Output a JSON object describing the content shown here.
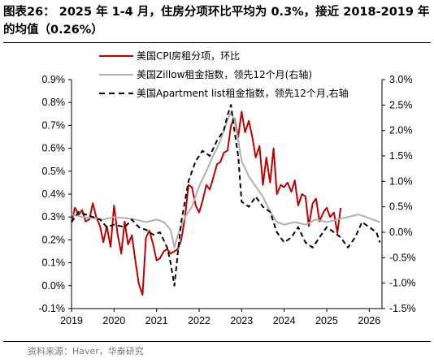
{
  "figure": {
    "title": "图表26： 2025 年 1-4 月，住房分项环比平均为 0.3%，接近 2018-2019 年的均值（0.26%）",
    "source": "资料来源：Haver，华泰研究"
  },
  "chart_data": {
    "type": "line",
    "title": "图表26： 2025 年 1-4 月，住房分项环比平均为 0.3%，接近 2018-2019 年的均值（0.26%）",
    "xlabel": "",
    "ylabel": "",
    "x_ticks": [
      "2019",
      "2020",
      "2021",
      "2022",
      "2023",
      "2024",
      "2025",
      "2026"
    ],
    "x_range": [
      2019.0,
      2026.3
    ],
    "y_left": {
      "range": [
        -0.1,
        0.9
      ],
      "ticks": [
        "-0.1%",
        "0.0%",
        "0.1%",
        "0.2%",
        "0.3%",
        "0.4%",
        "0.5%",
        "0.6%",
        "0.7%",
        "0.8%",
        "0.9%"
      ]
    },
    "y_right": {
      "range": [
        -1.5,
        3.0
      ],
      "ticks": [
        "-1.5%",
        "-1.0%",
        "-0.5%",
        "0.0%",
        "0.5%",
        "1.0%",
        "1.5%",
        "2.0%",
        "2.5%",
        "3.0%"
      ]
    },
    "grid": false,
    "legend_position": "top-center",
    "series": [
      {
        "name": "美国CPI房租分项，环比",
        "axis": "left",
        "color": "#c00000",
        "style": "solid",
        "points": [
          [
            2019.0,
            0.28
          ],
          [
            2019.08,
            0.34
          ],
          [
            2019.17,
            0.31
          ],
          [
            2019.25,
            0.33
          ],
          [
            2019.33,
            0.28
          ],
          [
            2019.42,
            0.29
          ],
          [
            2019.5,
            0.36
          ],
          [
            2019.58,
            0.3
          ],
          [
            2019.67,
            0.26
          ],
          [
            2019.75,
            0.19
          ],
          [
            2019.83,
            0.26
          ],
          [
            2019.92,
            0.17
          ],
          [
            2020.0,
            0.35
          ],
          [
            2020.08,
            0.23
          ],
          [
            2020.17,
            0.14
          ],
          [
            2020.25,
            0.28
          ],
          [
            2020.33,
            0.18
          ],
          [
            2020.42,
            0.22
          ],
          [
            2020.5,
            0.11
          ],
          [
            2020.58,
            0.01
          ],
          [
            2020.67,
            -0.04
          ],
          [
            2020.75,
            0.21
          ],
          [
            2020.83,
            0.24
          ],
          [
            2020.92,
            0.18
          ],
          [
            2021.0,
            0.11
          ],
          [
            2021.08,
            0.12
          ],
          [
            2021.17,
            0.15
          ],
          [
            2021.25,
            0.16
          ],
          [
            2021.33,
            0.14
          ],
          [
            2021.42,
            0.15
          ],
          [
            2021.5,
            0.16
          ],
          [
            2021.58,
            0.2
          ],
          [
            2021.67,
            0.3
          ],
          [
            2021.75,
            0.44
          ],
          [
            2021.83,
            0.43
          ],
          [
            2021.92,
            0.35
          ],
          [
            2022.0,
            0.32
          ],
          [
            2022.08,
            0.37
          ],
          [
            2022.17,
            0.44
          ],
          [
            2022.25,
            0.42
          ],
          [
            2022.33,
            0.47
          ],
          [
            2022.42,
            0.53
          ],
          [
            2022.5,
            0.54
          ],
          [
            2022.58,
            0.58
          ],
          [
            2022.67,
            0.59
          ],
          [
            2022.75,
            0.7
          ],
          [
            2022.83,
            0.73
          ],
          [
            2022.92,
            0.65
          ],
          [
            2023.0,
            0.76
          ],
          [
            2023.08,
            0.67
          ],
          [
            2023.17,
            0.72
          ],
          [
            2023.25,
            0.65
          ],
          [
            2023.33,
            0.56
          ],
          [
            2023.42,
            0.61
          ],
          [
            2023.5,
            0.44
          ],
          [
            2023.58,
            0.56
          ],
          [
            2023.67,
            0.45
          ],
          [
            2023.75,
            0.6
          ],
          [
            2023.83,
            0.4
          ],
          [
            2023.92,
            0.44
          ],
          [
            2024.0,
            0.43
          ],
          [
            2024.08,
            0.45
          ],
          [
            2024.17,
            0.41
          ],
          [
            2024.25,
            0.46
          ],
          [
            2024.33,
            0.35
          ],
          [
            2024.42,
            0.4
          ],
          [
            2024.5,
            0.39
          ],
          [
            2024.58,
            0.26
          ],
          [
            2024.67,
            0.36
          ],
          [
            2024.75,
            0.38
          ],
          [
            2024.83,
            0.28
          ],
          [
            2024.92,
            0.32
          ],
          [
            2025.0,
            0.34
          ],
          [
            2025.08,
            0.3
          ],
          [
            2025.17,
            0.32
          ],
          [
            2025.25,
            0.23
          ],
          [
            2025.33,
            0.34
          ]
        ]
      },
      {
        "name": "美国Zillow租金指数，领先12个月(右轴)",
        "axis": "right",
        "color": "#b0b0b0",
        "style": "solid",
        "points": [
          [
            2019.0,
            0.35
          ],
          [
            2019.25,
            0.3
          ],
          [
            2019.5,
            0.28
          ],
          [
            2019.75,
            0.25
          ],
          [
            2020.0,
            0.3
          ],
          [
            2020.25,
            0.28
          ],
          [
            2020.5,
            0.25
          ],
          [
            2020.75,
            0.2
          ],
          [
            2021.0,
            0.25
          ],
          [
            2021.17,
            0.2
          ],
          [
            2021.33,
            0.05
          ],
          [
            2021.42,
            -0.3
          ],
          [
            2021.5,
            -0.05
          ],
          [
            2021.67,
            0.3
          ],
          [
            2021.83,
            0.5
          ],
          [
            2022.0,
            0.9
          ],
          [
            2022.17,
            1.2
          ],
          [
            2022.33,
            1.5
          ],
          [
            2022.5,
            1.8
          ],
          [
            2022.67,
            2.2
          ],
          [
            2022.75,
            2.35
          ],
          [
            2022.83,
            2.2
          ],
          [
            2022.92,
            1.8
          ],
          [
            2023.0,
            1.4
          ],
          [
            2023.17,
            1.1
          ],
          [
            2023.33,
            0.9
          ],
          [
            2023.5,
            0.7
          ],
          [
            2023.67,
            0.4
          ],
          [
            2023.83,
            0.2
          ],
          [
            2024.0,
            0.15
          ],
          [
            2024.25,
            0.2
          ],
          [
            2024.5,
            0.15
          ],
          [
            2024.75,
            0.25
          ],
          [
            2025.0,
            0.2
          ],
          [
            2025.25,
            0.25
          ],
          [
            2025.5,
            0.3
          ],
          [
            2025.75,
            0.35
          ],
          [
            2025.92,
            0.3
          ],
          [
            2026.08,
            0.25
          ],
          [
            2026.25,
            0.2
          ]
        ]
      },
      {
        "name": "美国Apartment list租金指数，领先12个月,右轴",
        "axis": "right",
        "color": "#000000",
        "style": "dashed",
        "points": [
          [
            2019.0,
            0.2
          ],
          [
            2019.17,
            0.4
          ],
          [
            2019.33,
            0.35
          ],
          [
            2019.5,
            0.3
          ],
          [
            2019.67,
            0.25
          ],
          [
            2019.83,
            0.1
          ],
          [
            2020.0,
            0.15
          ],
          [
            2020.25,
            0.1
          ],
          [
            2020.42,
            0.25
          ],
          [
            2020.58,
            0.1
          ],
          [
            2020.75,
            0.05
          ],
          [
            2020.92,
            -0.05
          ],
          [
            2021.08,
            0.0
          ],
          [
            2021.25,
            -0.3
          ],
          [
            2021.33,
            -0.6
          ],
          [
            2021.42,
            -1.05
          ],
          [
            2021.5,
            -0.4
          ],
          [
            2021.58,
            0.2
          ],
          [
            2021.75,
            1.0
          ],
          [
            2021.92,
            1.4
          ],
          [
            2022.08,
            1.6
          ],
          [
            2022.25,
            1.5
          ],
          [
            2022.42,
            1.8
          ],
          [
            2022.58,
            2.0
          ],
          [
            2022.67,
            2.3
          ],
          [
            2022.75,
            2.5
          ],
          [
            2022.83,
            2.0
          ],
          [
            2022.92,
            1.5
          ],
          [
            2023.0,
            0.6
          ],
          [
            2023.17,
            0.5
          ],
          [
            2023.33,
            0.7
          ],
          [
            2023.5,
            0.5
          ],
          [
            2023.67,
            0.4
          ],
          [
            2023.83,
            0.0
          ],
          [
            2024.0,
            -0.2
          ],
          [
            2024.17,
            -0.1
          ],
          [
            2024.33,
            0.1
          ],
          [
            2024.5,
            -0.2
          ],
          [
            2024.67,
            -0.3
          ],
          [
            2024.83,
            -0.1
          ],
          [
            2025.0,
            0.1
          ],
          [
            2025.17,
            0.0
          ],
          [
            2025.33,
            -0.1
          ],
          [
            2025.5,
            -0.3
          ],
          [
            2025.67,
            -0.1
          ],
          [
            2025.83,
            0.2
          ],
          [
            2026.0,
            0.1
          ],
          [
            2026.17,
            0.0
          ],
          [
            2026.25,
            -0.2
          ]
        ]
      }
    ]
  }
}
